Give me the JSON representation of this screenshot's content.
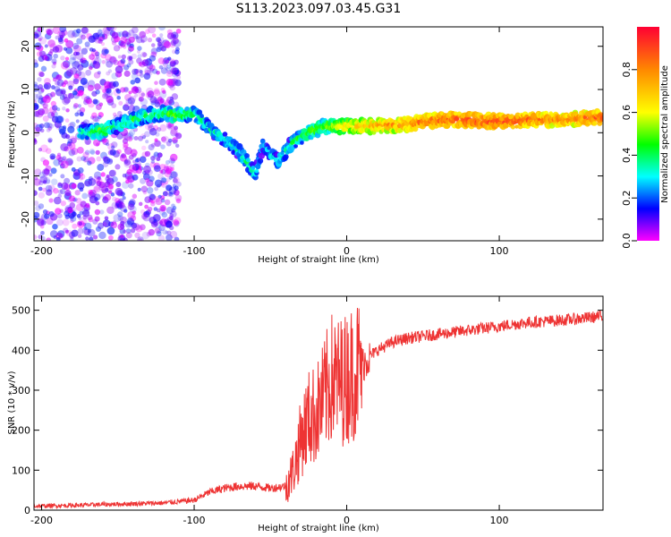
{
  "title": "S113.2023.097.03.45.G31",
  "chart_data": [
    {
      "type": "heatmap",
      "xlabel": "Height of straight line (km)",
      "ylabel": "Frequency (Hz)",
      "xlim": [
        -205,
        168
      ],
      "ylim": [
        -25,
        24.5
      ],
      "xticks": [
        -200,
        -100,
        0,
        100
      ],
      "yticks": [
        -20,
        -10,
        0,
        10,
        20
      ],
      "colorbar": {
        "label": "Normalized spectral amplitude",
        "range": [
          0,
          1
        ],
        "ticks": [
          0.0,
          0.2,
          0.4,
          0.6,
          0.8
        ],
        "tick_labels": [
          "0.0",
          "0.2",
          "0.4",
          "0.6",
          "0.8"
        ]
      },
      "ridge": [
        {
          "x": -170,
          "y": 0.0,
          "a": 0.4
        },
        {
          "x": -160,
          "y": 0.5,
          "a": 0.5
        },
        {
          "x": -150,
          "y": 1.5,
          "a": 0.35
        },
        {
          "x": -140,
          "y": 3.0,
          "a": 0.45
        },
        {
          "x": -130,
          "y": 4.0,
          "a": 0.4
        },
        {
          "x": -120,
          "y": 4.5,
          "a": 0.45
        },
        {
          "x": -110,
          "y": 4.0,
          "a": 0.5
        },
        {
          "x": -100,
          "y": 4.5,
          "a": 0.4
        },
        {
          "x": -90,
          "y": 1.0,
          "a": 0.35
        },
        {
          "x": -80,
          "y": -1.5,
          "a": 0.35
        },
        {
          "x": -70,
          "y": -4.5,
          "a": 0.35
        },
        {
          "x": -60,
          "y": -9.5,
          "a": 0.4
        },
        {
          "x": -55,
          "y": -3.0,
          "a": 0.3
        },
        {
          "x": -45,
          "y": -6.5,
          "a": 0.35
        },
        {
          "x": -35,
          "y": -2.0,
          "a": 0.4
        },
        {
          "x": -25,
          "y": 0.0,
          "a": 0.5
        },
        {
          "x": -15,
          "y": 1.5,
          "a": 0.5
        },
        {
          "x": 0,
          "y": 1.5,
          "a": 0.65
        },
        {
          "x": 20,
          "y": 1.5,
          "a": 0.75
        },
        {
          "x": 40,
          "y": 2.0,
          "a": 0.8
        },
        {
          "x": 60,
          "y": 3.0,
          "a": 0.85
        },
        {
          "x": 80,
          "y": 3.0,
          "a": 0.9
        },
        {
          "x": 100,
          "y": 2.5,
          "a": 0.9
        },
        {
          "x": 120,
          "y": 3.0,
          "a": 0.85
        },
        {
          "x": 140,
          "y": 3.0,
          "a": 0.8
        },
        {
          "x": 160,
          "y": 3.5,
          "a": 0.85
        }
      ]
    },
    {
      "type": "line",
      "xlabel": "Height of straight line (km)",
      "ylabel": "SNR (10 * v/v)",
      "xlim": [
        -205,
        168
      ],
      "ylim": [
        0,
        535
      ],
      "xticks": [
        -200,
        -100,
        0,
        100
      ],
      "yticks": [
        0,
        100,
        200,
        300,
        400,
        500
      ],
      "series": [
        {
          "color": "#ee3333",
          "x": [
            -205,
            -180,
            -150,
            -120,
            -100,
            -90,
            -80,
            -70,
            -60,
            -50,
            -40,
            -35,
            -30,
            -25,
            -20,
            -15,
            -10,
            -5,
            0,
            5,
            10,
            15,
            20,
            30,
            40,
            50,
            60,
            70,
            80,
            90,
            100,
            110,
            120,
            130,
            140,
            150,
            160,
            168
          ],
          "y": [
            10,
            12,
            15,
            18,
            25,
            45,
            55,
            60,
            60,
            55,
            60,
            100,
            180,
            230,
            240,
            280,
            330,
            320,
            330,
            350,
            365,
            385,
            400,
            420,
            430,
            435,
            440,
            445,
            450,
            455,
            460,
            465,
            470,
            472,
            475,
            478,
            482,
            485
          ]
        }
      ]
    }
  ]
}
